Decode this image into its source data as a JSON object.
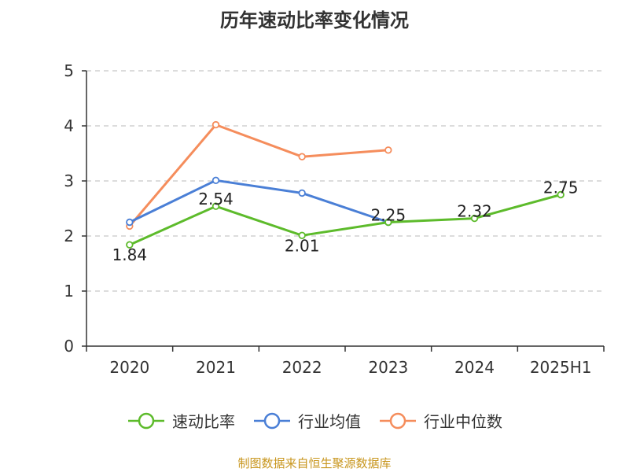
{
  "chart_data": {
    "type": "line",
    "title": "历年速动比率变化情况",
    "categories": [
      "2020",
      "2021",
      "2022",
      "2023",
      "2024",
      "2025H1"
    ],
    "ylim": [
      0,
      5
    ],
    "yticks": [
      "0",
      "1",
      "2",
      "3",
      "4",
      "5"
    ],
    "grid": true,
    "legend_position": "bottom",
    "series": [
      {
        "name": "速动比率",
        "color": "#5dbb2b",
        "values": [
          1.84,
          2.54,
          2.01,
          2.25,
          2.32,
          2.75
        ],
        "labels": [
          "1.84",
          "2.54",
          "2.01",
          "2.25",
          "2.32",
          "2.75"
        ]
      },
      {
        "name": "行业均值",
        "color": "#4a7fd6",
        "values": [
          2.25,
          3.01,
          2.78,
          2.25,
          null,
          null
        ]
      },
      {
        "name": "行业中位数",
        "color": "#f58d5c",
        "values": [
          2.18,
          4.02,
          3.44,
          3.56,
          null,
          null
        ]
      }
    ]
  },
  "source": "制图数据来自恒生聚源数据库"
}
